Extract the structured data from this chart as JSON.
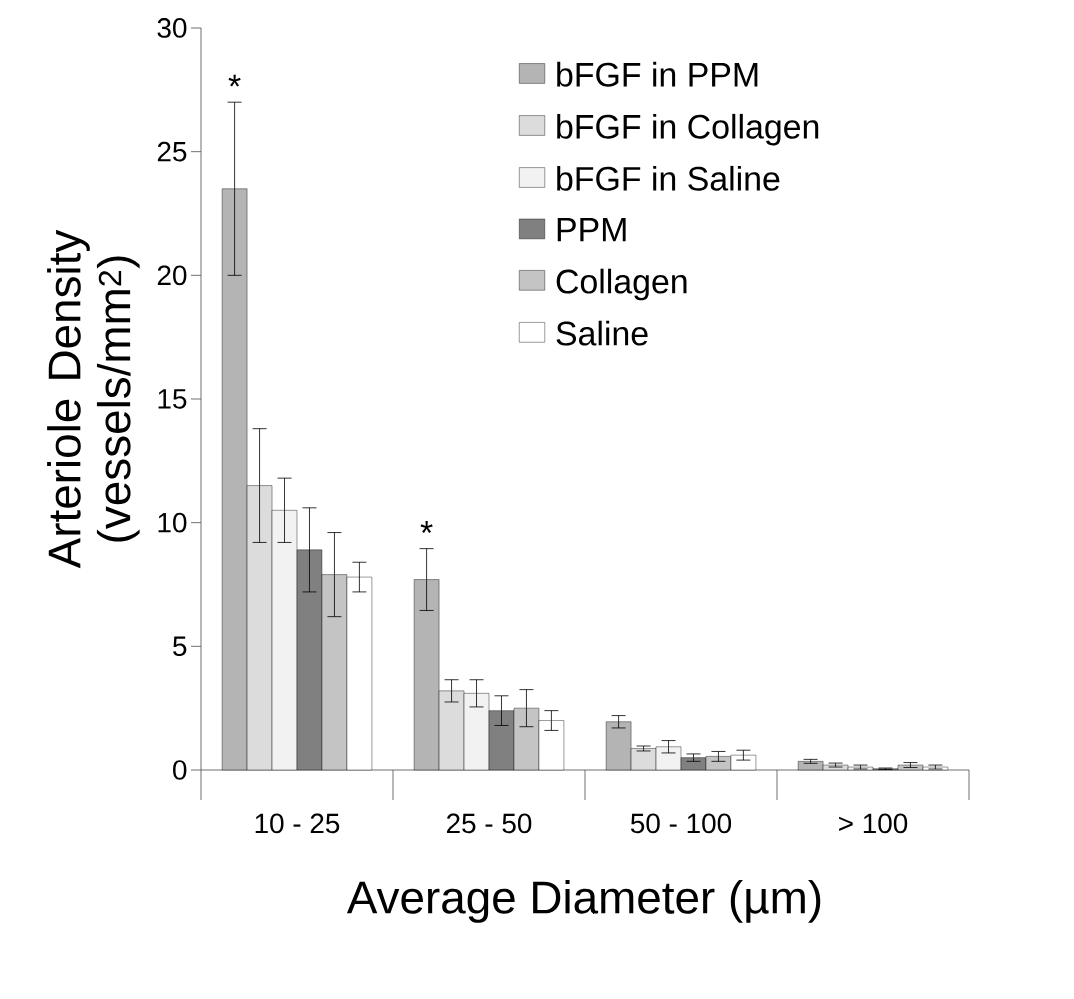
{
  "chart_data": {
    "type": "bar",
    "xlabel": "Average Diameter (µm)",
    "ylabel": "Arteriole Density (vessels/mm$^{2}$)",
    "categories": [
      "10 - 25",
      "25 - 50",
      "50 - 100",
      "> 100"
    ],
    "series": [
      {
        "name": "bFGF in PPM",
        "color": "#b4b4b4",
        "values": [
          23.5,
          7.7,
          1.95,
          0.35
        ],
        "errors": [
          3.5,
          1.25,
          0.25,
          0.08
        ]
      },
      {
        "name": "bFGF in Collagen",
        "color": "#dcdcdc",
        "values": [
          11.5,
          3.2,
          0.87,
          0.2
        ],
        "errors": [
          2.3,
          0.45,
          0.1,
          0.08
        ]
      },
      {
        "name": "bFGF in Saline",
        "color": "#f2f2f2",
        "values": [
          10.5,
          3.1,
          0.94,
          0.12
        ],
        "errors": [
          1.3,
          0.55,
          0.25,
          0.08
        ]
      },
      {
        "name": "PPM",
        "color": "#808080",
        "values": [
          8.9,
          2.4,
          0.5,
          0.05
        ],
        "errors": [
          1.7,
          0.6,
          0.15,
          0.03
        ]
      },
      {
        "name": "Collagen",
        "color": "#c4c4c4",
        "values": [
          7.9,
          2.5,
          0.55,
          0.2
        ],
        "errors": [
          1.7,
          0.75,
          0.2,
          0.1
        ]
      },
      {
        "name": "Saline",
        "color": "#ffffff",
        "values": [
          7.8,
          2.0,
          0.6,
          0.12
        ],
        "errors": [
          0.6,
          0.4,
          0.2,
          0.08
        ]
      }
    ],
    "ylim": [
      0,
      30
    ],
    "yticks": [
      0,
      5,
      10,
      15,
      20,
      25,
      30
    ],
    "legend": "top right",
    "annotations": [
      "*",
      "*"
    ]
  }
}
